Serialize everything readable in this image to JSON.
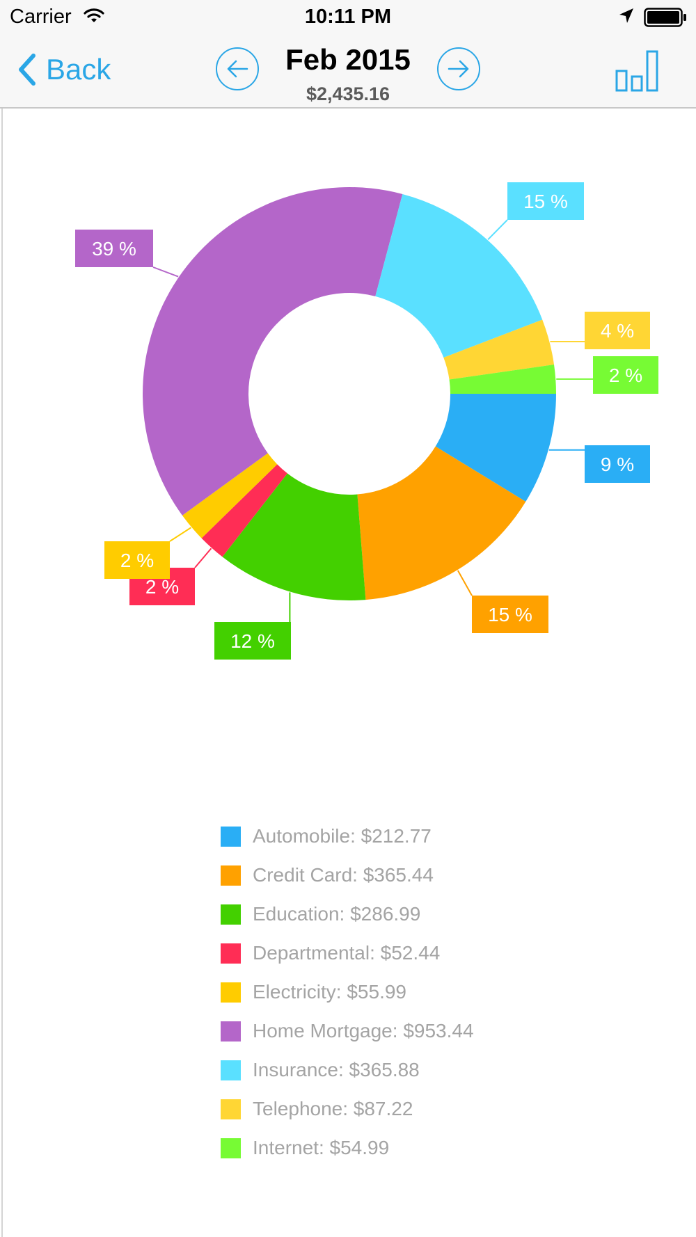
{
  "status": {
    "carrier": "Carrier",
    "time": "10:11 PM"
  },
  "nav": {
    "back_label": "Back",
    "title": "Feb 2015",
    "total": "$2,435.16"
  },
  "colors": {
    "accent": "#2aa6e6"
  },
  "icons": [
    "wifi-icon",
    "location-arrow-icon",
    "battery-icon",
    "chevron-left-icon",
    "arrow-left-circle-icon",
    "arrow-right-circle-icon",
    "bar-chart-icon"
  ],
  "chart_data": {
    "type": "pie",
    "variant": "donut",
    "slices": [
      {
        "label": "Automobile",
        "value": 212.77,
        "percent_label": "9 %",
        "color": "#2aaef5"
      },
      {
        "label": "Credit Card",
        "value": 365.44,
        "percent_label": "15 %",
        "color": "#ffa100"
      },
      {
        "label": "Education",
        "value": 286.99,
        "percent_label": "12 %",
        "color": "#43d000"
      },
      {
        "label": "Departmental",
        "value": 52.44,
        "percent_label": "2 %",
        "color": "#ff2d55"
      },
      {
        "label": "Electricity",
        "value": 55.99,
        "percent_label": "2 %",
        "color": "#ffcc00"
      },
      {
        "label": "Home Mortgage",
        "value": 953.44,
        "percent_label": "39 %",
        "color": "#b466c9"
      },
      {
        "label": "Insurance",
        "value": 365.88,
        "percent_label": "15 %",
        "color": "#5ae0ff"
      },
      {
        "label": "Telephone",
        "value": 87.22,
        "percent_label": "4 %",
        "color": "#ffd634"
      },
      {
        "label": "Internet",
        "value": 54.99,
        "percent_label": "2 %",
        "color": "#77fb34"
      }
    ],
    "legend": [
      "Automobile: $212.77",
      "Credit Card: $365.44",
      "Education: $286.99",
      "Departmental: $52.44",
      "Electricity: $55.99",
      "Home Mortgage: $953.44",
      "Insurance: $365.88",
      "Telephone: $87.22",
      "Internet: $54.99"
    ],
    "legend_position": "bottom"
  }
}
